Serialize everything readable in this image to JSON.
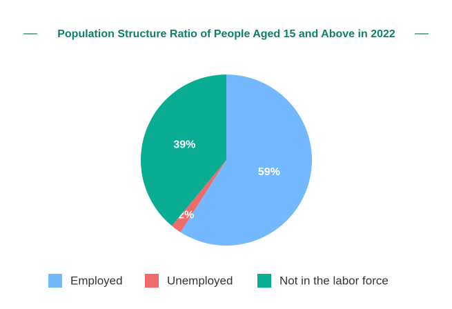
{
  "chart_data": {
    "type": "pie",
    "title": "Population Structure Ratio of People Aged 15 and Above in 2022",
    "categories": [
      "Employed",
      "Unemployed",
      "Not in the labor force"
    ],
    "values": [
      59,
      2,
      39
    ],
    "value_labels": [
      "59%",
      "2%",
      "39%"
    ],
    "colors": [
      "#74b9ff",
      "#ef6b6b",
      "#0aad92"
    ],
    "legend": "bottom"
  }
}
